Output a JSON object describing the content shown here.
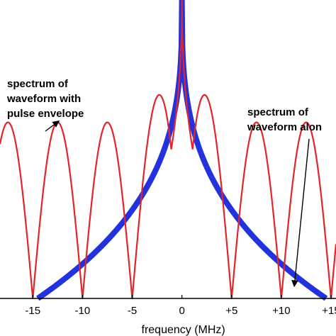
{
  "chart_data": {
    "type": "line",
    "title": "",
    "xlabel": "frequency (MHz)",
    "ylabel": "",
    "xlim": [
      -18.3,
      15.5
    ],
    "ylim": [
      0,
      1
    ],
    "grid": false,
    "x_ticks": [
      {
        "value": -15,
        "label": "-15"
      },
      {
        "value": -10,
        "label": "-10"
      },
      {
        "value": -5,
        "label": "-5"
      },
      {
        "value": 0,
        "label": "0"
      },
      {
        "value": 5,
        "label": "+5"
      },
      {
        "value": 10,
        "label": "+10"
      },
      {
        "value": 15,
        "label": "+15"
      }
    ],
    "series": [
      {
        "color": "#e3242b",
        "kind": "sinc-envelope",
        "null_spacing": 5,
        "peak_height": 1.0,
        "lobe_top": 0.59
      },
      {
        "color": "#2233dd",
        "kind": "narrow-spectrum",
        "x_min": -14.5,
        "x_max": 14.5,
        "peak_height": 1.0
      }
    ],
    "annotations": [
      {
        "lines": [
          "spectrum of",
          "waveform with",
          "pulse envelope"
        ],
        "arrow_to": {
          "x": -12.5,
          "y": 0.59
        }
      },
      {
        "lines": [
          "spectrum of",
          "waveform alon"
        ],
        "arrow_to": {
          "x": 11.3,
          "y": 0.04
        }
      }
    ]
  }
}
